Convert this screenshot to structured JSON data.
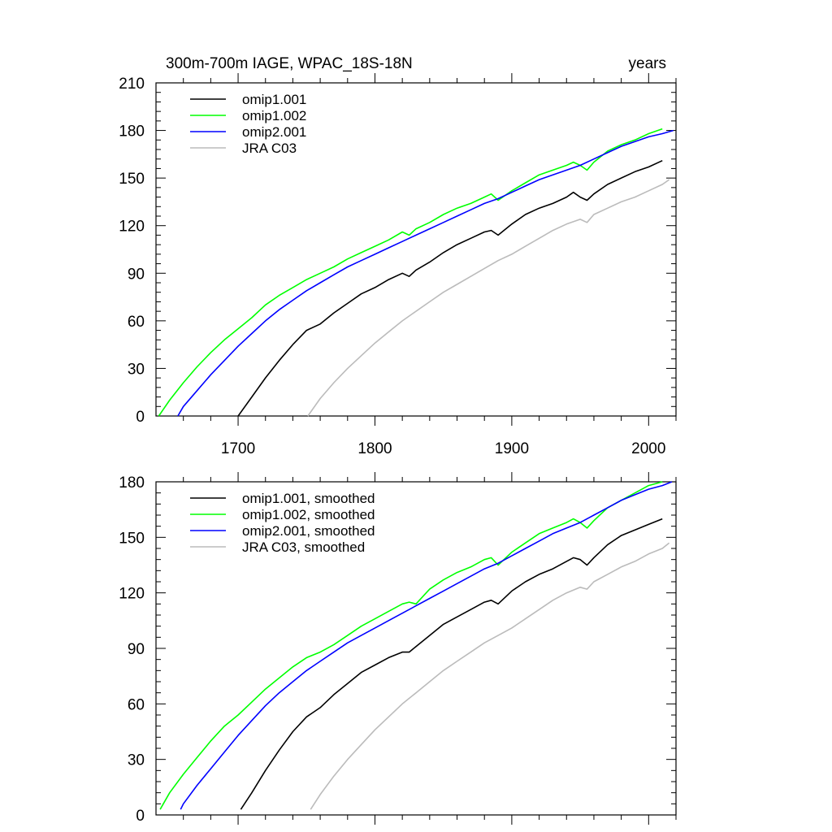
{
  "chart_data": [
    {
      "type": "line",
      "title": "300m-700m IAGE, WPAC_18S-18N",
      "units": "years",
      "xlim": [
        1640,
        2020
      ],
      "ylim": [
        0,
        210
      ],
      "x_ticks": [
        1700,
        1800,
        1900,
        2000
      ],
      "y_ticks": [
        0,
        30,
        60,
        90,
        120,
        150,
        180,
        210
      ],
      "grid": false,
      "legend_position": "top-left",
      "series": [
        {
          "name": "omip1.001",
          "color": "#000000",
          "x": [
            1700,
            1710,
            1720,
            1730,
            1740,
            1750,
            1760,
            1770,
            1780,
            1790,
            1800,
            1810,
            1820,
            1825,
            1830,
            1840,
            1850,
            1860,
            1870,
            1880,
            1885,
            1890,
            1900,
            1910,
            1920,
            1930,
            1940,
            1945,
            1950,
            1955,
            1960,
            1970,
            1980,
            1990,
            2000,
            2010
          ],
          "y": [
            0,
            12,
            24,
            35,
            45,
            54,
            58,
            65,
            71,
            77,
            81,
            86,
            90,
            88,
            92,
            97,
            103,
            108,
            112,
            116,
            117,
            114,
            121,
            127,
            131,
            134,
            138,
            141,
            138,
            136,
            140,
            146,
            150,
            154,
            157,
            161
          ]
        },
        {
          "name": "omip1.002",
          "color": "#00ff00",
          "x": [
            1642,
            1650,
            1660,
            1670,
            1680,
            1690,
            1700,
            1710,
            1720,
            1730,
            1740,
            1750,
            1760,
            1770,
            1780,
            1790,
            1800,
            1810,
            1820,
            1825,
            1830,
            1840,
            1850,
            1860,
            1870,
            1880,
            1885,
            1890,
            1900,
            1910,
            1920,
            1930,
            1940,
            1945,
            1950,
            1955,
            1960,
            1970,
            1980,
            1990,
            2000,
            2010
          ],
          "y": [
            0,
            10,
            21,
            31,
            40,
            48,
            55,
            62,
            70,
            76,
            81,
            86,
            90,
            94,
            99,
            103,
            107,
            111,
            116,
            114,
            118,
            122,
            127,
            131,
            134,
            138,
            140,
            136,
            142,
            147,
            152,
            155,
            158,
            160,
            158,
            155,
            160,
            167,
            171,
            174,
            178,
            181
          ]
        },
        {
          "name": "omip2.001",
          "color": "#0000ff",
          "x": [
            1656,
            1660,
            1670,
            1680,
            1690,
            1700,
            1710,
            1720,
            1730,
            1740,
            1750,
            1760,
            1770,
            1780,
            1790,
            1800,
            1810,
            1820,
            1830,
            1840,
            1850,
            1860,
            1870,
            1880,
            1890,
            1900,
            1910,
            1920,
            1930,
            1940,
            1950,
            1960,
            1970,
            1980,
            1990,
            2000,
            2010,
            2018
          ],
          "y": [
            0,
            6,
            16,
            26,
            35,
            44,
            52,
            60,
            67,
            73,
            79,
            84,
            89,
            94,
            98,
            102,
            106,
            110,
            114,
            118,
            122,
            126,
            130,
            134,
            137,
            141,
            145,
            149,
            152,
            155,
            158,
            162,
            166,
            170,
            173,
            176,
            178,
            180
          ]
        },
        {
          "name": "JRA C03",
          "color": "#bbbbbb",
          "x": [
            1751,
            1760,
            1770,
            1780,
            1790,
            1800,
            1810,
            1820,
            1830,
            1840,
            1850,
            1860,
            1870,
            1880,
            1890,
            1900,
            1910,
            1920,
            1930,
            1940,
            1950,
            1955,
            1960,
            1970,
            1980,
            1990,
            2000,
            2010,
            2015
          ],
          "y": [
            0,
            11,
            21,
            30,
            38,
            46,
            53,
            60,
            66,
            72,
            78,
            83,
            88,
            93,
            98,
            102,
            107,
            112,
            117,
            121,
            124,
            122,
            127,
            131,
            135,
            138,
            142,
            146,
            149
          ]
        }
      ]
    },
    {
      "type": "line",
      "xlim": [
        1640,
        2020
      ],
      "ylim": [
        0,
        180
      ],
      "x_ticks": [
        1700,
        1800,
        1900,
        2000
      ],
      "y_ticks": [
        0,
        30,
        60,
        90,
        120,
        150,
        180
      ],
      "grid": false,
      "legend_position": "top-left",
      "series": [
        {
          "name": "omip1.001, smoothed",
          "color": "#000000",
          "x": [
            1702,
            1710,
            1720,
            1730,
            1740,
            1750,
            1760,
            1770,
            1780,
            1790,
            1800,
            1810,
            1820,
            1825,
            1830,
            1840,
            1850,
            1860,
            1870,
            1880,
            1885,
            1890,
            1900,
            1910,
            1920,
            1930,
            1940,
            1945,
            1950,
            1955,
            1960,
            1970,
            1980,
            1990,
            2000,
            2010
          ],
          "y": [
            3,
            12,
            24,
            35,
            45,
            53,
            58,
            65,
            71,
            77,
            81,
            85,
            88,
            88,
            91,
            97,
            103,
            107,
            111,
            115,
            116,
            114,
            121,
            126,
            130,
            133,
            137,
            139,
            138,
            135,
            139,
            146,
            151,
            154,
            157,
            160
          ]
        },
        {
          "name": "omip1.002, smoothed",
          "color": "#00ff00",
          "x": [
            1643,
            1650,
            1660,
            1670,
            1680,
            1690,
            1700,
            1710,
            1720,
            1730,
            1740,
            1750,
            1760,
            1770,
            1780,
            1790,
            1800,
            1810,
            1820,
            1825,
            1830,
            1840,
            1850,
            1860,
            1870,
            1880,
            1885,
            1890,
            1900,
            1910,
            1920,
            1930,
            1940,
            1945,
            1950,
            1955,
            1960,
            1970,
            1980,
            1990,
            2000,
            2010
          ],
          "y": [
            3,
            12,
            22,
            31,
            40,
            48,
            54,
            61,
            68,
            74,
            80,
            85,
            88,
            92,
            97,
            102,
            106,
            110,
            114,
            115,
            114,
            122,
            127,
            131,
            134,
            138,
            139,
            135,
            142,
            147,
            152,
            155,
            158,
            160,
            158,
            155,
            159,
            166,
            170,
            174,
            178,
            180
          ]
        },
        {
          "name": "omip2.001, smoothed",
          "color": "#0000ff",
          "x": [
            1658,
            1660,
            1670,
            1680,
            1690,
            1700,
            1710,
            1720,
            1730,
            1740,
            1750,
            1760,
            1770,
            1780,
            1790,
            1800,
            1810,
            1820,
            1830,
            1840,
            1850,
            1860,
            1870,
            1880,
            1890,
            1900,
            1910,
            1920,
            1930,
            1940,
            1950,
            1960,
            1970,
            1980,
            1990,
            2000,
            2010,
            2017
          ],
          "y": [
            3,
            6,
            16,
            25,
            34,
            43,
            51,
            59,
            66,
            72,
            78,
            83,
            88,
            93,
            97,
            101,
            105,
            109,
            113,
            117,
            121,
            125,
            129,
            133,
            136,
            140,
            144,
            148,
            152,
            155,
            158,
            162,
            166,
            170,
            173,
            176,
            178,
            180
          ]
        },
        {
          "name": "JRA C03, smoothed",
          "color": "#bbbbbb",
          "x": [
            1753,
            1760,
            1770,
            1780,
            1790,
            1800,
            1810,
            1820,
            1830,
            1840,
            1850,
            1860,
            1870,
            1880,
            1890,
            1900,
            1910,
            1920,
            1930,
            1940,
            1950,
            1955,
            1960,
            1970,
            1980,
            1990,
            2000,
            2010,
            2015
          ],
          "y": [
            3,
            11,
            21,
            30,
            38,
            46,
            53,
            60,
            66,
            72,
            78,
            83,
            88,
            93,
            97,
            101,
            106,
            111,
            116,
            120,
            123,
            122,
            126,
            130,
            134,
            137,
            141,
            144,
            147
          ]
        }
      ]
    }
  ]
}
